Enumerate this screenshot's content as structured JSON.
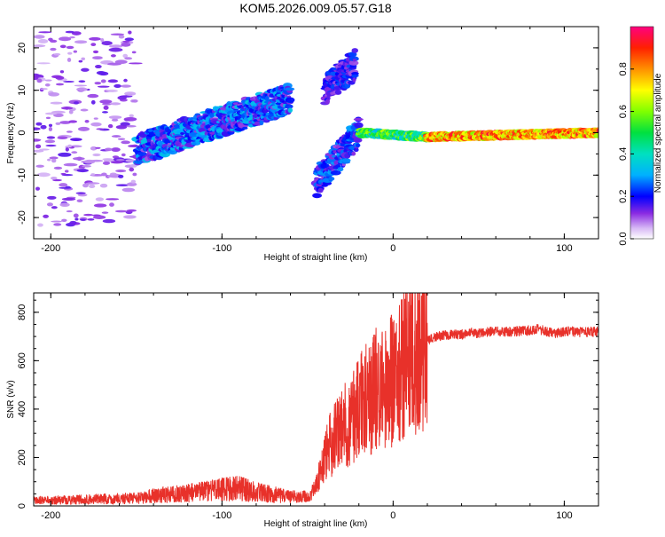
{
  "title": "KOM5.2026.009.05.57.G18",
  "colors": {
    "axis": "#000000",
    "snr_line": "#e8312a",
    "purple_low": "#c9a6f0",
    "purple_mid": "#7a2cf0",
    "blue": "#2020e0"
  },
  "chart_data": [
    {
      "type": "heatmap",
      "name": "spectrogram",
      "xlabel": "Height of straight line (km)",
      "ylabel": "Frequency (Hz)",
      "xlim": [
        -210,
        120
      ],
      "ylim": [
        -25,
        25
      ],
      "xticks": [
        -200,
        -100,
        0,
        100
      ],
      "xtick_labels": [
        "-200",
        "-100",
        "0",
        "100"
      ],
      "yticks": [
        -20,
        -10,
        0,
        10,
        20
      ],
      "ytick_labels": [
        "-20",
        "-10",
        "0",
        "10",
        "20"
      ],
      "colorbar": {
        "label": "Normalized spectral amplitude",
        "range": [
          0,
          1
        ],
        "ticks": [
          0.0,
          0.2,
          0.4,
          0.6,
          0.8
        ],
        "tick_labels": [
          "0.0",
          "0.2",
          "0.4",
          "0.6",
          "0.8"
        ]
      },
      "features": [
        {
          "x_range": [
            -210,
            -150
          ],
          "freq_range": [
            -22,
            24
          ],
          "amplitude": 0.1,
          "description": "scattered weak noise"
        },
        {
          "x_range": [
            -150,
            -60
          ],
          "freq_start": -4,
          "freq_end": 8,
          "amplitude": 0.25
        },
        {
          "x_range": [
            -45,
            -20
          ],
          "freq_start": -12,
          "freq_end": 0,
          "amplitude": 0.2
        },
        {
          "x_range": [
            -40,
            -22
          ],
          "freq_start": 10,
          "freq_end": 16,
          "amplitude": 0.15
        },
        {
          "x_range": [
            -20,
            20
          ],
          "freq_start": 0,
          "freq_end": -1,
          "amplitude": 0.55
        },
        {
          "x_range": [
            20,
            120
          ],
          "freq_start": -1,
          "freq_end": 0,
          "amplitude": 0.85
        }
      ]
    },
    {
      "type": "line",
      "name": "snr",
      "xlabel": "Height of straight line (km)",
      "ylabel": "SNR (v/v)",
      "xlim": [
        -210,
        120
      ],
      "ylim": [
        0,
        880
      ],
      "xticks": [
        -200,
        -100,
        0,
        100
      ],
      "xtick_labels": [
        "-200",
        "-100",
        "0",
        "100"
      ],
      "yticks": [
        0,
        200,
        400,
        600,
        800
      ],
      "ytick_labels": [
        "0",
        "200",
        "400",
        "600",
        "800"
      ],
      "series": [
        {
          "name": "SNR",
          "x": [
            -210,
            -190,
            -170,
            -150,
            -140,
            -130,
            -120,
            -110,
            -100,
            -90,
            -80,
            -70,
            -60,
            -50,
            -45,
            -40,
            -35,
            -30,
            -25,
            -20,
            -15,
            -10,
            -5,
            0,
            5,
            10,
            12,
            15,
            20,
            25,
            30,
            40,
            50,
            60,
            70,
            80,
            85,
            90,
            95,
            100,
            110,
            120
          ],
          "y": [
            15,
            18,
            22,
            25,
            35,
            40,
            45,
            55,
            60,
            65,
            50,
            40,
            30,
            30,
            80,
            200,
            280,
            320,
            350,
            420,
            450,
            480,
            500,
            520,
            560,
            700,
            650,
            620,
            680,
            700,
            705,
            710,
            715,
            720,
            720,
            725,
            730,
            720,
            715,
            720,
            718,
            720
          ]
        }
      ]
    }
  ]
}
